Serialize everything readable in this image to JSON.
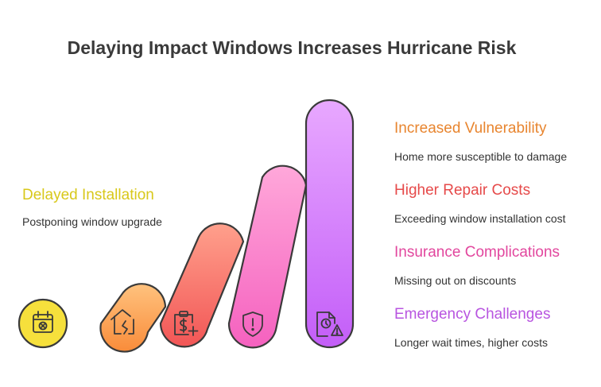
{
  "title": "Delaying Impact Windows Increases Hurricane Risk",
  "colors": {
    "yellow": "#f6e03c",
    "orange_light": "#ffc27e",
    "orange_dark": "#f98c3a",
    "salmon_light": "#ffa08c",
    "salmon_dark": "#f25656",
    "pink_light": "#ffa8da",
    "pink_dark": "#f561bf",
    "violet_light": "#e8a8ff",
    "violet_dark": "#c35ef8",
    "outline": "#3a3a3a"
  },
  "left_item": {
    "heading": "Delayed Installation",
    "description": "Postponing window upgrade",
    "color": "#d8c81a",
    "icon": "calendar-x-icon"
  },
  "right_items": [
    {
      "heading": "Increased Vulnerability",
      "description": "Home more susceptible to damage",
      "color": "#e8852f",
      "icon": "broken-house-icon"
    },
    {
      "heading": "Higher Repair Costs",
      "description": "Exceeding window installation cost",
      "color": "#e64a4a",
      "icon": "clipboard-dollar-plus-icon"
    },
    {
      "heading": "Insurance Complications",
      "description": "Missing out on discounts",
      "color": "#e2479e",
      "icon": "shield-alert-icon"
    },
    {
      "heading": "Emergency Challenges",
      "description": "Longer wait times, higher costs",
      "color": "#b855e0",
      "icon": "file-clock-warning-icon"
    }
  ]
}
